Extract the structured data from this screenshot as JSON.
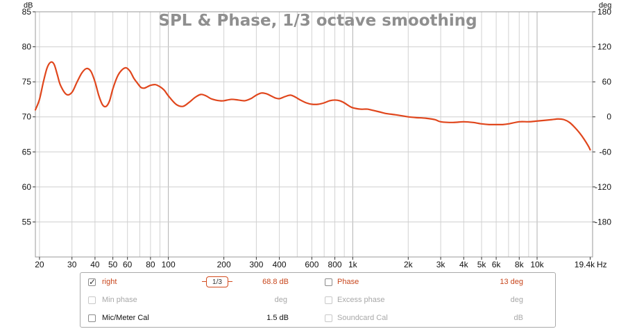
{
  "chart_data": {
    "type": "line",
    "title": "SPL & Phase, 1/3 octave smoothing",
    "y_left_unit": "dB",
    "y_right_unit": "deg",
    "x_unit": "Hz",
    "x_scale": "log",
    "xlim": [
      19,
      20000
    ],
    "ylim_left": [
      50,
      85
    ],
    "ylim_right": [
      -240,
      180
    ],
    "x_ticks": [
      20,
      30,
      40,
      50,
      60,
      80,
      100,
      200,
      300,
      400,
      600,
      800,
      1000,
      2000,
      3000,
      4000,
      5000,
      6000,
      8000,
      10000,
      19400
    ],
    "x_tick_labels": [
      "20",
      "30",
      "40",
      "50",
      "60",
      "80",
      "100",
      "200",
      "300",
      "400",
      "600",
      "800",
      "1k",
      "2k",
      "3k",
      "4k",
      "5k",
      "6k",
      "8k",
      "10k",
      "19.4k"
    ],
    "y_left_ticks": [
      55,
      60,
      65,
      70,
      75,
      80,
      85
    ],
    "y_right_ticks": [
      -180,
      -120,
      -60,
      0,
      60,
      120,
      180
    ],
    "grid": true,
    "series": [
      {
        "name": "right",
        "color": "#e0461c",
        "x": [
          19,
          20,
          21,
          22,
          23,
          24,
          25,
          26,
          28,
          30,
          32,
          34,
          36,
          38,
          40,
          42,
          44,
          46,
          48,
          50,
          53,
          56,
          59,
          62,
          65,
          68,
          71,
          74,
          77,
          80,
          85,
          90,
          95,
          100,
          110,
          120,
          130,
          140,
          150,
          160,
          170,
          180,
          190,
          200,
          220,
          240,
          260,
          280,
          300,
          320,
          340,
          360,
          380,
          400,
          430,
          460,
          490,
          520,
          560,
          600,
          650,
          700,
          750,
          800,
          850,
          900,
          950,
          1000,
          1100,
          1200,
          1300,
          1400,
          1500,
          1700,
          1900,
          2000,
          2200,
          2500,
          2800,
          3000,
          3500,
          4000,
          4500,
          5000,
          5500,
          6000,
          6500,
          7000,
          8000,
          9000,
          10000,
          11000,
          12000,
          13000,
          14000,
          15000,
          16000,
          17000,
          18000,
          19000,
          19400
        ],
        "values": [
          71.0,
          72.5,
          75.0,
          77.0,
          77.8,
          77.5,
          76.0,
          74.5,
          73.2,
          73.5,
          75.0,
          76.3,
          76.9,
          76.5,
          75.0,
          73.0,
          71.7,
          71.5,
          72.3,
          74.0,
          75.8,
          76.7,
          77.0,
          76.5,
          75.5,
          74.8,
          74.2,
          74.1,
          74.3,
          74.5,
          74.6,
          74.3,
          73.8,
          73.0,
          71.8,
          71.5,
          72.1,
          72.8,
          73.2,
          73.0,
          72.6,
          72.4,
          72.3,
          72.3,
          72.5,
          72.4,
          72.3,
          72.6,
          73.1,
          73.4,
          73.3,
          73.0,
          72.7,
          72.6,
          72.9,
          73.1,
          72.8,
          72.4,
          72.0,
          71.8,
          71.8,
          72.0,
          72.3,
          72.4,
          72.3,
          72.0,
          71.6,
          71.3,
          71.1,
          71.1,
          70.9,
          70.7,
          70.5,
          70.3,
          70.1,
          70.0,
          69.9,
          69.8,
          69.6,
          69.3,
          69.2,
          69.3,
          69.2,
          69.0,
          68.9,
          68.9,
          68.9,
          69.0,
          69.3,
          69.3,
          69.4,
          69.5,
          69.6,
          69.7,
          69.6,
          69.2,
          68.5,
          67.7,
          66.8,
          65.8,
          65.3
        ]
      }
    ]
  },
  "legend_panel": {
    "row1": {
      "series_label": "right",
      "series_checked": true,
      "smoothing_button": "1/3",
      "value": "68.8 dB",
      "phase_label": "Phase",
      "phase_checked": false,
      "phase_value": "13 deg"
    },
    "row2": {
      "min_phase_label": "Min phase",
      "min_phase_unit": "deg",
      "excess_phase_label": "Excess phase",
      "excess_phase_unit": "deg"
    },
    "row3": {
      "cal_label": "Mic/Meter Cal",
      "cal_value": "1.5 dB",
      "soundcard_label": "Soundcard Cal",
      "soundcard_unit": "dB"
    }
  }
}
